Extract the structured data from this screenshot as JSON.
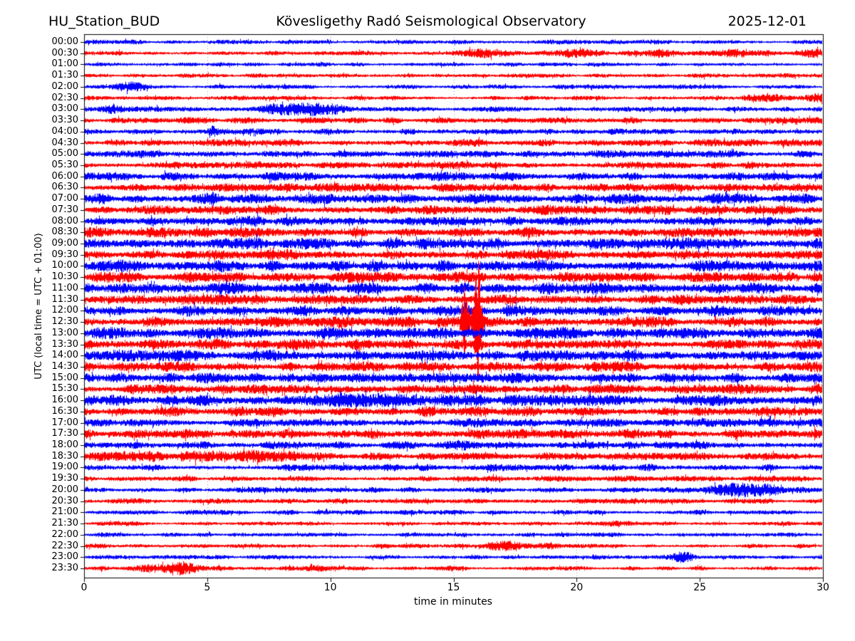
{
  "chart_data": {
    "type": "helicorder",
    "station": "HU_Station_BUD",
    "observatory": "Kövesligethy Radó Seismological Observatory",
    "date": "2025-12-01",
    "xlabel": "time in minutes",
    "ylabel": "UTC (local time = UTC + 01:00)",
    "xlim": [
      0,
      30
    ],
    "x_ticks": [
      0,
      5,
      10,
      15,
      20,
      25,
      30
    ],
    "minutes_per_line": 30,
    "grid": "vertical dotted lines every 5 minutes",
    "colors": {
      "b": "#0000ff",
      "r": "#ff0000",
      "grid": "#999999",
      "frame": "#000000"
    },
    "amp_units": "half-band amplitude as fraction of line spacing",
    "event_format": "[minute, sigma_minutes, amplitude]",
    "rows": [
      {
        "t": "00:00",
        "c": "b",
        "a": 0.15,
        "e": []
      },
      {
        "t": "00:30",
        "c": "r",
        "a": 0.14,
        "e": [
          [
            16.4,
            0.7,
            0.22
          ],
          [
            20.1,
            0.45,
            0.18
          ],
          [
            23.3,
            0.4,
            0.14
          ],
          [
            26.4,
            0.8,
            0.17
          ],
          [
            29.6,
            0.35,
            0.23
          ],
          [
            22,
            6,
            0.05
          ]
        ]
      },
      {
        "t": "01:00",
        "c": "b",
        "a": 0.14,
        "e": []
      },
      {
        "t": "01:30",
        "c": "r",
        "a": 0.15,
        "e": []
      },
      {
        "t": "02:00",
        "c": "b",
        "a": 0.15,
        "e": [
          [
            1.9,
            0.45,
            0.29
          ]
        ]
      },
      {
        "t": "02:30",
        "c": "r",
        "a": 0.145,
        "e": [
          [
            27.9,
            0.7,
            0.2
          ],
          [
            29.7,
            0.3,
            0.27
          ]
        ]
      },
      {
        "t": "03:00",
        "c": "b",
        "a": 0.165,
        "e": [
          [
            1.0,
            0.3,
            0.29
          ],
          [
            8.1,
            0.8,
            0.32
          ],
          [
            9.4,
            0.5,
            0.29
          ],
          [
            10.3,
            0.3,
            0.22
          ]
        ]
      },
      {
        "t": "03:30",
        "c": "r",
        "a": 0.2,
        "e": []
      },
      {
        "t": "04:00",
        "c": "b",
        "a": 0.19,
        "e": [
          [
            5.2,
            0.12,
            0.29
          ]
        ]
      },
      {
        "t": "04:30",
        "c": "r",
        "a": 0.23,
        "e": []
      },
      {
        "t": "05:00",
        "c": "b",
        "a": 0.24,
        "e": []
      },
      {
        "t": "05:30",
        "c": "r",
        "a": 0.24,
        "e": []
      },
      {
        "t": "06:00",
        "c": "b",
        "a": 0.28,
        "e": []
      },
      {
        "t": "06:30",
        "c": "r",
        "a": 0.3,
        "e": []
      },
      {
        "t": "07:00",
        "c": "b",
        "a": 0.33,
        "e": [
          [
            5.3,
            0.2,
            0.25
          ]
        ]
      },
      {
        "t": "07:30",
        "c": "r",
        "a": 0.3,
        "e": []
      },
      {
        "t": "08:00",
        "c": "b",
        "a": 0.33,
        "e": []
      },
      {
        "t": "08:30",
        "c": "r",
        "a": 0.33,
        "e": []
      },
      {
        "t": "09:00",
        "c": "b",
        "a": 0.39,
        "e": []
      },
      {
        "t": "09:30",
        "c": "r",
        "a": 0.33,
        "e": []
      },
      {
        "t": "10:00",
        "c": "b",
        "a": 0.37,
        "e": [
          [
            1.2,
            0.8,
            0.19
          ]
        ]
      },
      {
        "t": "10:30",
        "c": "r",
        "a": 0.34,
        "e": []
      },
      {
        "t": "11:00",
        "c": "b",
        "a": 0.37,
        "e": [
          [
            15.4,
            0.2,
            0.19
          ]
        ]
      },
      {
        "t": "11:30",
        "c": "r",
        "a": 0.33,
        "e": []
      },
      {
        "t": "12:00",
        "c": "b",
        "a": 0.34,
        "e": []
      },
      {
        "t": "12:30",
        "c": "r",
        "a": 0.34,
        "e": [
          [
            15.45,
            0.1,
            2.7
          ],
          [
            15.95,
            0.12,
            5.1
          ]
        ]
      },
      {
        "t": "13:00",
        "c": "b",
        "a": 0.39,
        "e": []
      },
      {
        "t": "13:30",
        "c": "r",
        "a": 0.34,
        "e": [
          [
            16.0,
            0.1,
            0.64
          ]
        ]
      },
      {
        "t": "14:00",
        "c": "b",
        "a": 0.37,
        "e": []
      },
      {
        "t": "14:30",
        "c": "r",
        "a": 0.32,
        "e": []
      },
      {
        "t": "15:00",
        "c": "b",
        "a": 0.32,
        "e": []
      },
      {
        "t": "15:30",
        "c": "r",
        "a": 0.32,
        "e": []
      },
      {
        "t": "16:00",
        "c": "b",
        "a": 0.36,
        "e": [
          [
            10,
            1.2,
            0.22
          ],
          [
            12.7,
            0.9,
            0.22
          ]
        ]
      },
      {
        "t": "16:30",
        "c": "r",
        "a": 0.32,
        "e": []
      },
      {
        "t": "17:00",
        "c": "b",
        "a": 0.28,
        "e": []
      },
      {
        "t": "17:30",
        "c": "r",
        "a": 0.3,
        "e": []
      },
      {
        "t": "18:00",
        "c": "b",
        "a": 0.25,
        "e": [
          [
            15.3,
            0.35,
            0.29
          ]
        ]
      },
      {
        "t": "18:30",
        "c": "r",
        "a": 0.27,
        "e": [
          [
            4.5,
            2.5,
            0.13
          ],
          [
            7,
            1.5,
            0.1
          ]
        ]
      },
      {
        "t": "19:00",
        "c": "b",
        "a": 0.22,
        "e": []
      },
      {
        "t": "19:30",
        "c": "r",
        "a": 0.19,
        "e": []
      },
      {
        "t": "20:00",
        "c": "b",
        "a": 0.19,
        "e": [
          [
            26.4,
            0.7,
            0.41
          ],
          [
            27.9,
            0.5,
            0.22
          ]
        ]
      },
      {
        "t": "20:30",
        "c": "r",
        "a": 0.18,
        "e": []
      },
      {
        "t": "21:00",
        "c": "b",
        "a": 0.16,
        "e": []
      },
      {
        "t": "21:30",
        "c": "r",
        "a": 0.14,
        "e": [
          [
            21.5,
            0.5,
            0.1
          ]
        ]
      },
      {
        "t": "22:00",
        "c": "b",
        "a": 0.14,
        "e": []
      },
      {
        "t": "22:30",
        "c": "r",
        "a": 0.14,
        "e": [
          [
            17.0,
            0.6,
            0.27
          ],
          [
            18.9,
            0.5,
            0.17
          ],
          [
            12.1,
            0.3,
            0.13
          ]
        ]
      },
      {
        "t": "23:00",
        "c": "b",
        "a": 0.14,
        "e": [
          [
            24.3,
            0.3,
            0.35
          ]
        ]
      },
      {
        "t": "23:30",
        "c": "r",
        "a": 0.15,
        "e": [
          [
            4.0,
            0.45,
            0.38
          ],
          [
            2.8,
            0.8,
            0.16
          ],
          [
            9.5,
            0.4,
            0.19
          ]
        ]
      }
    ]
  }
}
